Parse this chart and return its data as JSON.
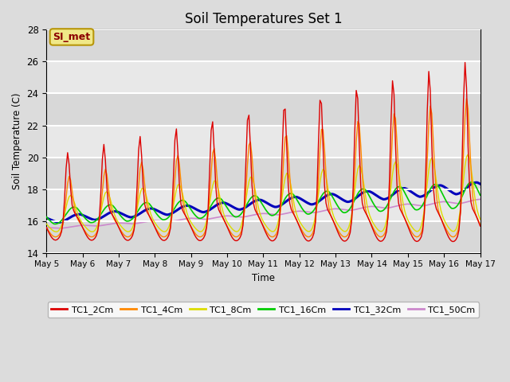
{
  "title": "Soil Temperatures Set 1",
  "xlabel": "Time",
  "ylabel": "Soil Temperature (C)",
  "ylim": [
    14,
    28
  ],
  "background_color": "#dcdcdc",
  "plot_bg_color": "#e8e8e8",
  "annotation_text": "SI_met",
  "annotation_bg": "#f0e888",
  "annotation_border": "#b8960a",
  "annotation_text_color": "#8b0000",
  "series_colors": {
    "TC1_2Cm": "#dd0000",
    "TC1_4Cm": "#ff8800",
    "TC1_8Cm": "#dddd00",
    "TC1_16Cm": "#00cc00",
    "TC1_32Cm": "#0000bb",
    "TC1_50Cm": "#cc88cc"
  },
  "xtick_labels": [
    "May 5",
    "May 6",
    "May 7",
    "May 8",
    "May 9",
    "May 10",
    "May 11",
    "May 12",
    "May 13",
    "May 14",
    "May 15",
    "May 16",
    "May 17"
  ],
  "ytick_labels": [
    14,
    16,
    18,
    20,
    22,
    24,
    26,
    28
  ],
  "figsize": [
    6.4,
    4.8
  ],
  "dpi": 100
}
